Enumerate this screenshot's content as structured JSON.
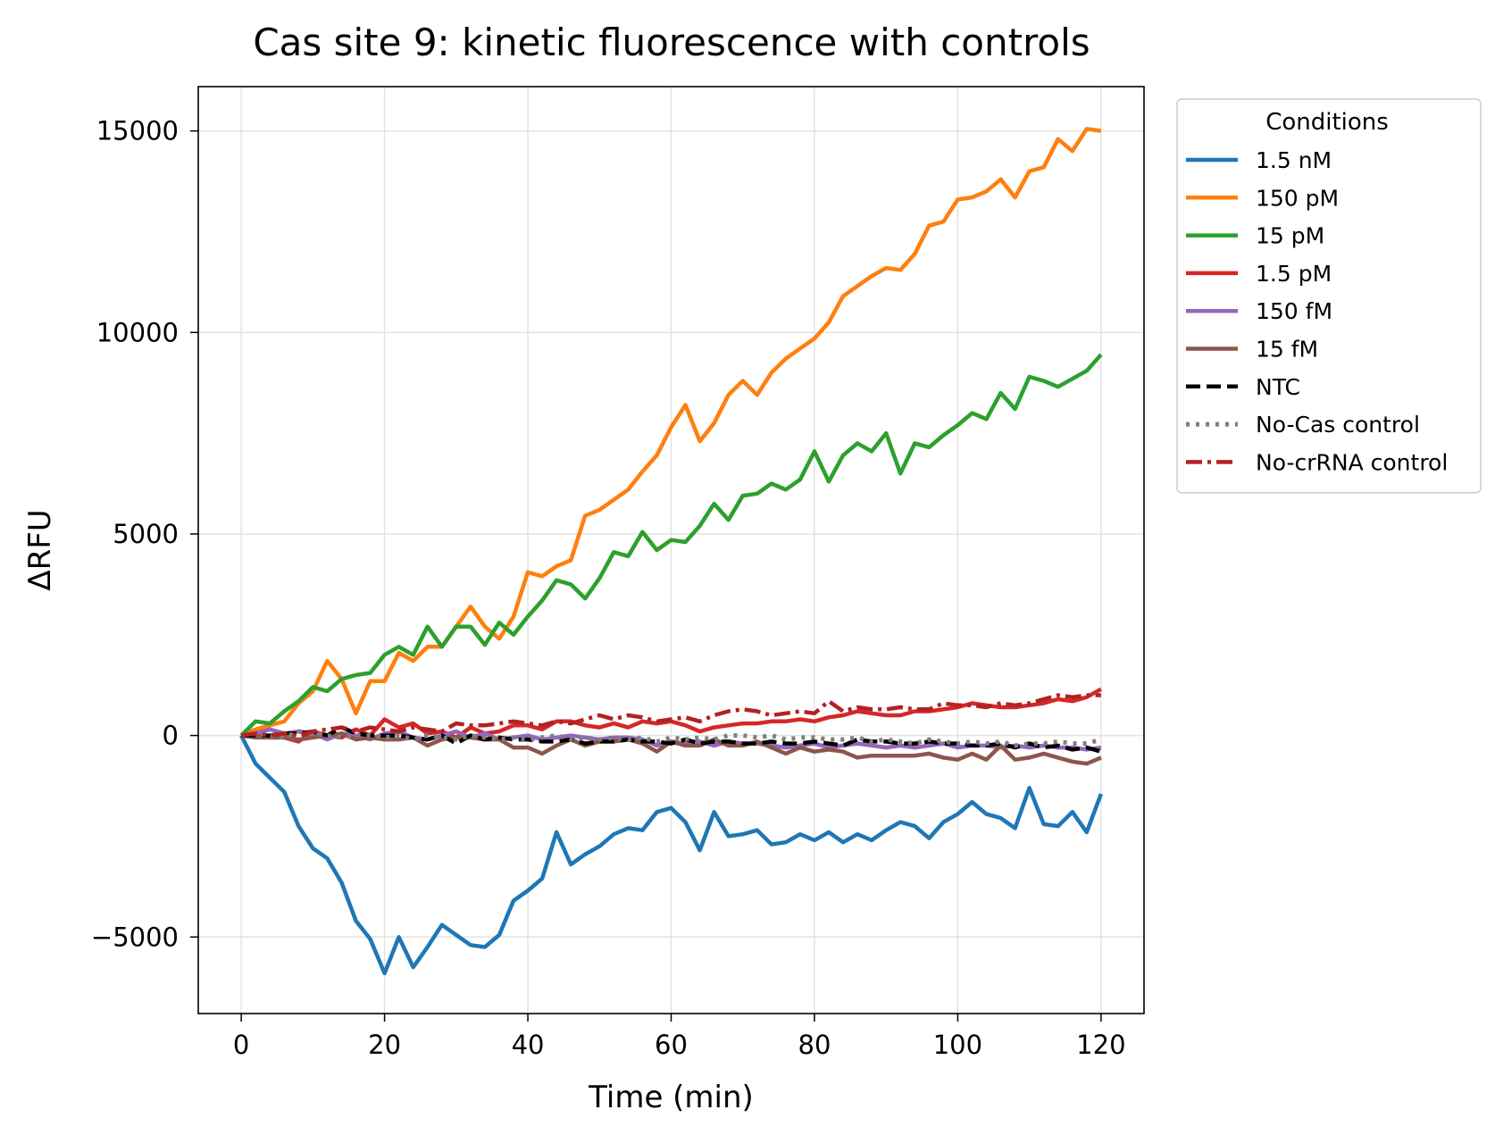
{
  "chart_data": {
    "type": "line",
    "title": "Cas site 9: kinetic fluorescence with controls",
    "xlabel": "Time (min)",
    "ylabel": "ΔRFU",
    "xlim": [
      -6,
      126
    ],
    "ylim": [
      -6900,
      16100
    ],
    "xticks": [
      0,
      20,
      40,
      60,
      80,
      100,
      120
    ],
    "xtick_labels": [
      "0",
      "20",
      "40",
      "60",
      "80",
      "100",
      "120"
    ],
    "yticks": [
      -5000,
      0,
      5000,
      10000,
      15000
    ],
    "ytick_labels": [
      "−5000",
      "0",
      "5000",
      "10000",
      "15000"
    ],
    "grid": true,
    "legend": {
      "title": "Conditions",
      "placement": "outside-right-top"
    },
    "x": [
      0,
      2,
      4,
      6,
      8,
      10,
      12,
      14,
      16,
      18,
      20,
      22,
      24,
      26,
      28,
      30,
      32,
      34,
      36,
      38,
      40,
      42,
      44,
      46,
      48,
      50,
      52,
      54,
      56,
      58,
      60,
      62,
      64,
      66,
      68,
      70,
      72,
      74,
      76,
      78,
      80,
      82,
      84,
      86,
      88,
      90,
      92,
      94,
      96,
      98,
      100,
      102,
      104,
      106,
      108,
      110,
      112,
      114,
      116,
      118,
      120
    ],
    "series": [
      {
        "name": "1.5 nM",
        "color": "#1f77b4",
        "dash": "solid",
        "values": [
          0,
          -700,
          -1050,
          -1400,
          -2250,
          -2800,
          -3050,
          -3650,
          -4600,
          -5050,
          -5900,
          -5000,
          -5750,
          -5250,
          -4700,
          -4950,
          -5200,
          -5250,
          -4950,
          -4100,
          -3850,
          -3550,
          -2400,
          -3200,
          -2950,
          -2750,
          -2450,
          -2300,
          -2350,
          -1900,
          -1800,
          -2150,
          -2850,
          -1900,
          -2500,
          -2450,
          -2350,
          -2700,
          -2650,
          -2450,
          -2600,
          -2400,
          -2650,
          -2450,
          -2600,
          -2350,
          -2150,
          -2250,
          -2550,
          -2150,
          -1950,
          -1650,
          -1950,
          -2050,
          -2300,
          -1300,
          -2200,
          -2250,
          -1900,
          -2400,
          -1450
        ]
      },
      {
        "name": "150 pM",
        "color": "#ff7f0e",
        "dash": "solid",
        "values": [
          0,
          150,
          250,
          350,
          800,
          1100,
          1850,
          1400,
          550,
          1350,
          1350,
          2050,
          1850,
          2200,
          2200,
          2700,
          3200,
          2700,
          2400,
          2950,
          4050,
          3950,
          4200,
          4350,
          5450,
          5600,
          5850,
          6100,
          6550,
          6950,
          7650,
          8200,
          7300,
          7750,
          8450,
          8800,
          8450,
          9000,
          9350,
          9600,
          9850,
          10250,
          10900,
          11150,
          11400,
          11600,
          11550,
          11950,
          12650,
          12750,
          13300,
          13350,
          13500,
          13800,
          13350,
          14000,
          14100,
          14800,
          14500,
          15050,
          15000
        ]
      },
      {
        "name": "15 pM",
        "color": "#2ca02c",
        "dash": "solid",
        "values": [
          0,
          350,
          300,
          600,
          850,
          1200,
          1100,
          1400,
          1500,
          1550,
          2000,
          2200,
          2000,
          2700,
          2200,
          2700,
          2700,
          2250,
          2800,
          2500,
          2950,
          3350,
          3850,
          3750,
          3400,
          3900,
          4550,
          4450,
          5050,
          4600,
          4850,
          4800,
          5200,
          5750,
          5350,
          5950,
          6000,
          6250,
          6100,
          6350,
          7050,
          6300,
          6950,
          7250,
          7050,
          7500,
          6500,
          7250,
          7150,
          7450,
          7700,
          8000,
          7850,
          8500,
          8100,
          8900,
          8800,
          8650,
          8850,
          9050,
          9450
        ]
      },
      {
        "name": "1.5 pM",
        "color": "#d62728",
        "dash": "solid",
        "values": [
          0,
          0,
          -50,
          -50,
          -150,
          100,
          0,
          -50,
          150,
          0,
          400,
          200,
          300,
          50,
          100,
          -50,
          200,
          50,
          100,
          250,
          250,
          150,
          350,
          350,
          250,
          200,
          300,
          200,
          350,
          300,
          350,
          250,
          100,
          200,
          250,
          300,
          300,
          350,
          350,
          400,
          350,
          450,
          500,
          600,
          550,
          500,
          500,
          600,
          600,
          650,
          700,
          800,
          750,
          700,
          700,
          750,
          800,
          900,
          850,
          950,
          1150
        ]
      },
      {
        "name": "150 fM",
        "color": "#9467bd",
        "dash": "solid",
        "values": [
          0,
          50,
          150,
          50,
          100,
          50,
          -100,
          50,
          0,
          -100,
          50,
          100,
          -50,
          -100,
          0,
          100,
          -50,
          50,
          -100,
          -50,
          0,
          -100,
          -50,
          0,
          -50,
          -100,
          -50,
          -50,
          -100,
          -250,
          -150,
          -200,
          -150,
          -250,
          -150,
          -200,
          -200,
          -250,
          -300,
          -250,
          -200,
          -300,
          -250,
          -200,
          -250,
          -300,
          -250,
          -300,
          -250,
          -200,
          -300,
          -250,
          -250,
          -300,
          -250,
          -300,
          -250,
          -300,
          -300,
          -350,
          -300
        ]
      },
      {
        "name": "15 fM",
        "color": "#8c564b",
        "dash": "solid",
        "values": [
          0,
          -50,
          -50,
          -50,
          -100,
          -50,
          0,
          50,
          -100,
          -50,
          -100,
          -100,
          -50,
          -250,
          -100,
          -50,
          -50,
          -100,
          -100,
          -300,
          -300,
          -450,
          -250,
          -100,
          -250,
          -150,
          -150,
          -100,
          -200,
          -400,
          -150,
          -250,
          -250,
          -100,
          -250,
          -250,
          -150,
          -300,
          -450,
          -300,
          -400,
          -350,
          -400,
          -550,
          -500,
          -500,
          -500,
          -500,
          -450,
          -550,
          -600,
          -450,
          -600,
          -250,
          -600,
          -550,
          -450,
          -550,
          -650,
          -700,
          -550
        ]
      },
      {
        "name": "NTC",
        "color": "#000000",
        "dash": "dashed",
        "values": [
          0,
          0,
          0,
          50,
          50,
          100,
          0,
          200,
          50,
          0,
          0,
          0,
          -50,
          -100,
          0,
          -200,
          0,
          -100,
          -50,
          -100,
          -100,
          -150,
          -150,
          -100,
          -200,
          -150,
          -150,
          -100,
          -150,
          -150,
          -200,
          -100,
          -200,
          -150,
          -150,
          -200,
          -200,
          -150,
          -200,
          -200,
          -150,
          -200,
          -250,
          -100,
          -150,
          -150,
          -200,
          -200,
          -150,
          -200,
          -200,
          -250,
          -250,
          -200,
          -300,
          -200,
          -300,
          -250,
          -350,
          -300,
          -400
        ]
      },
      {
        "name": "No-Cas control",
        "color": "#7f7f7f",
        "dash": "dotted",
        "values": [
          0,
          50,
          0,
          -50,
          100,
          50,
          0,
          -50,
          0,
          0,
          -50,
          0,
          -100,
          0,
          -50,
          -100,
          0,
          -50,
          -100,
          -50,
          -100,
          -50,
          0,
          -100,
          -50,
          -100,
          -50,
          -100,
          -50,
          -150,
          -50,
          -100,
          -50,
          -100,
          0,
          0,
          -50,
          0,
          -100,
          -50,
          -50,
          -100,
          -100,
          -50,
          -150,
          -100,
          -150,
          -200,
          -100,
          -150,
          -200,
          -150,
          -200,
          -150,
          -250,
          -200,
          -200,
          -150,
          -200,
          -200,
          -100
        ]
      },
      {
        "name": "No-crRNA control",
        "color": "#b22222",
        "dash": "dashdot",
        "values": [
          0,
          50,
          0,
          50,
          0,
          100,
          150,
          200,
          100,
          200,
          150,
          100,
          200,
          150,
          100,
          300,
          250,
          250,
          300,
          350,
          300,
          250,
          350,
          300,
          400,
          500,
          400,
          500,
          450,
          350,
          400,
          450,
          350,
          500,
          600,
          650,
          600,
          500,
          550,
          600,
          550,
          850,
          600,
          700,
          650,
          650,
          700,
          650,
          650,
          800,
          750,
          750,
          700,
          800,
          750,
          800,
          900,
          1000,
          950,
          1000,
          1000
        ]
      }
    ]
  }
}
